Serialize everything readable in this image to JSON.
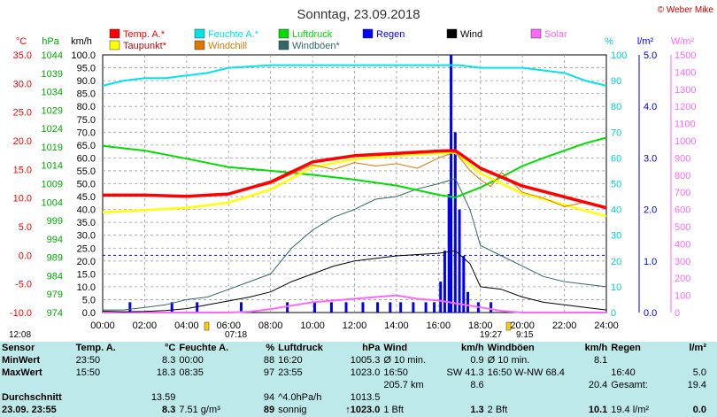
{
  "title": "Sonntag, 23.09.2018",
  "copyright": "© Weber Mike",
  "colors": {
    "temp": "#ff0000",
    "humidity": "#00e5e5",
    "pressure": "#00dd00",
    "rain": "#0000ff",
    "wind": "#000000",
    "solar": "#ff66ff",
    "dew": "#ffff00",
    "windchill": "#dd7700",
    "gust": "#336666",
    "grid": "#999999",
    "panel": "#bde9ea"
  },
  "axis_titles": {
    "temp": "°C",
    "pressure": "hPa",
    "wind": "km/h",
    "humidity": "%",
    "rain": "l/m²",
    "solar": "W/m²"
  },
  "legend": [
    {
      "label": "Temp. A.*",
      "color": "#ff0000"
    },
    {
      "label": "Feuchte A.*",
      "color": "#00e5e5"
    },
    {
      "label": "Luftdruck",
      "color": "#00dd00"
    },
    {
      "label": "Regen",
      "color": "#0000ff"
    },
    {
      "label": "Wind",
      "color": "#000000"
    },
    {
      "label": "Solar",
      "color": "#ff66ff"
    },
    {
      "label": "Taupunkt*",
      "color": "#ffff00"
    },
    {
      "label": "Windchill",
      "color": "#dd7700"
    },
    {
      "label": "Windböen*",
      "color": "#336666"
    }
  ],
  "sun_info": {
    "sunrise": "07:18",
    "sunset": "19:27",
    "left_time": "12:08",
    "right_time": "9:15"
  },
  "chart_data": {
    "type": "line",
    "xlabel": "",
    "ylabel": "",
    "x_ticks": [
      "00:00",
      "02:00",
      "04:00",
      "06:00",
      "08:00",
      "10:00",
      "12:00",
      "14:00",
      "16:00",
      "18:00",
      "20:00",
      "22:00",
      "24:00"
    ],
    "axes": {
      "temp_ticks": [
        -10.0,
        -5.0,
        0.0,
        5.0,
        10.0,
        15.0,
        20.0,
        25.0,
        30.0,
        35.0
      ],
      "pressure_ticks": [
        974,
        979,
        984,
        989,
        994,
        999,
        1004,
        1009,
        1014,
        1019,
        1024,
        1029,
        1034,
        1039,
        1044
      ],
      "wind_ticks": [
        0.0,
        5.0,
        10.0,
        15.0,
        20.0,
        25.0,
        30.0,
        35.0,
        40.0,
        45.0,
        50.0,
        55.0,
        60.0,
        65.0,
        70.0,
        75.0,
        80.0,
        85.0,
        90.0,
        95.0,
        100.0
      ],
      "humidity_ticks": [
        0,
        10,
        20,
        30,
        40,
        50,
        60,
        70,
        80,
        90,
        100
      ],
      "rain_ticks": [
        0.0,
        1.0,
        2.0,
        3.0,
        4.0,
        5.0
      ],
      "solar_ticks": [
        0,
        100,
        200,
        300,
        400,
        500,
        600,
        700,
        800,
        900,
        1000,
        1100,
        1200,
        1300,
        1400,
        1500
      ]
    },
    "series": [
      {
        "name": "Temp. A.*",
        "axis": "temp",
        "x": [
          0,
          2,
          4,
          6,
          8,
          10,
          12,
          14,
          16,
          16.8,
          18,
          20,
          22,
          24
        ],
        "y": [
          10.5,
          10.5,
          10.3,
          10.7,
          12.8,
          16.3,
          17.4,
          17.8,
          18.2,
          18.3,
          15.2,
          12.1,
          10.2,
          8.3
        ]
      },
      {
        "name": "Taupunkt*",
        "axis": "temp",
        "x": [
          0,
          2,
          4,
          6,
          8,
          10,
          12,
          14,
          16,
          16.8,
          18,
          20,
          22,
          24
        ],
        "y": [
          7.5,
          7.9,
          8.3,
          9.2,
          11.5,
          15.4,
          16.8,
          17.4,
          17.8,
          17.9,
          14.3,
          10.8,
          8.8,
          6.8
        ]
      },
      {
        "name": "Windchill",
        "axis": "temp",
        "x": [
          0,
          2,
          4,
          6,
          8,
          9,
          10,
          11,
          12,
          13,
          14,
          15,
          16,
          16.8,
          17.5,
          18,
          18.5,
          19,
          20,
          21,
          22,
          23,
          24
        ],
        "y": [
          10.5,
          10.5,
          10.3,
          10.7,
          12.5,
          14.2,
          15.8,
          15.0,
          16.2,
          15.6,
          16.0,
          15.2,
          17.0,
          18.0,
          14.8,
          13.2,
          12.0,
          14.5,
          11.0,
          10.0,
          8.5,
          9.3,
          8.3
        ]
      },
      {
        "name": "Feuchte A.*",
        "axis": "humidity",
        "x": [
          0,
          1,
          2,
          3,
          4,
          5,
          6,
          8,
          10,
          12,
          14,
          16,
          17,
          18,
          19,
          20,
          21,
          22,
          23,
          24
        ],
        "y": [
          88,
          90,
          91,
          91,
          92,
          93,
          95,
          96,
          96,
          96,
          96,
          96,
          96,
          95,
          95,
          95,
          94,
          93,
          90,
          88
        ]
      },
      {
        "name": "Luftdruck",
        "axis": "pressure",
        "x": [
          0,
          2,
          4,
          6,
          8,
          10,
          12,
          14,
          16,
          16.8,
          18,
          19,
          20,
          21,
          22,
          23,
          24
        ],
        "y": [
          1019.3,
          1018.0,
          1015.8,
          1013.5,
          1012.5,
          1011.4,
          1010.1,
          1008.5,
          1006.0,
          1005.3,
          1008.0,
          1010.8,
          1013.8,
          1016.0,
          1018.0,
          1020.0,
          1021.5
        ]
      },
      {
        "name": "Wind",
        "axis": "wind",
        "x": [
          0,
          1,
          2,
          3,
          4,
          5,
          6,
          7,
          8,
          9,
          10,
          11,
          12,
          13,
          14,
          15,
          16,
          16.8,
          17.5,
          18,
          19,
          20,
          21,
          22,
          23,
          24
        ],
        "y": [
          0.5,
          0.3,
          0.4,
          0.8,
          1.5,
          3.0,
          4.5,
          6.0,
          8.0,
          12.0,
          15.0,
          18.0,
          20.0,
          21.0,
          22.0,
          22.5,
          23.0,
          24.0,
          19.0,
          10.0,
          9.0,
          6.0,
          4.0,
          3.0,
          2.0,
          1.0
        ]
      },
      {
        "name": "Windböen*",
        "axis": "wind",
        "x": [
          0,
          1,
          2,
          3,
          4,
          5,
          6,
          7,
          8,
          9,
          10,
          11,
          12,
          13,
          14,
          15,
          16,
          16.8,
          17.5,
          18,
          19,
          20,
          21,
          22,
          23,
          24
        ],
        "y": [
          1.0,
          1.0,
          2.0,
          3.0,
          5.0,
          6.0,
          9.0,
          12.0,
          15.0,
          25.0,
          32.0,
          37.0,
          40.0,
          44.0,
          45.0,
          48.0,
          50.0,
          52.0,
          40.0,
          26.0,
          22.0,
          18.0,
          14.0,
          12.0,
          11.0,
          10.0
        ]
      },
      {
        "name": "Solar",
        "axis": "solar",
        "x": [
          0,
          6,
          7,
          8,
          9,
          10,
          11,
          12,
          13,
          14,
          15,
          16,
          17,
          18,
          19,
          20,
          24
        ],
        "y": [
          0,
          0,
          5,
          20,
          40,
          60,
          70,
          80,
          90,
          100,
          80,
          70,
          50,
          30,
          10,
          0,
          0
        ]
      },
      {
        "name": "Regen",
        "axis": "rain",
        "type": "bar",
        "x": [
          1.3,
          3.3,
          4.5,
          6.6,
          8.8,
          10.1,
          10.9,
          11.6,
          12.4,
          13.1,
          13.7,
          14.2,
          14.8,
          15.4,
          15.8,
          16.1,
          16.3,
          16.5,
          16.6,
          16.8,
          17.0,
          17.2,
          17.4,
          17.9,
          18.5
        ],
        "y": [
          0.2,
          0.2,
          0.2,
          0.2,
          0.2,
          0.2,
          0.2,
          0.2,
          0.2,
          0.2,
          0.2,
          0.2,
          0.2,
          0.2,
          0.2,
          0.6,
          1.2,
          2.3,
          5.0,
          3.5,
          2.0,
          1.1,
          0.4,
          0.2,
          0.2
        ]
      }
    ],
    "reference_lines": [
      {
        "axis": "temp",
        "y": 0.0,
        "style": "dashed",
        "color": "#0000ff"
      }
    ]
  },
  "stats": {
    "headers": [
      "Sensor",
      "Temp. A.",
      "°C",
      "Feuchte A.",
      "%",
      "Luftdruck",
      "hPa",
      "Wind",
      "km/h",
      "Windböen",
      "km/h",
      "Regen",
      "l/m²"
    ],
    "rows": [
      {
        "label": "MinWert",
        "cells": [
          "23:50",
          "8.3",
          "00:00",
          "88",
          "16:20",
          "1005.3",
          "Ø 10 min.",
          "0.9",
          "Ø 10 min.",
          "8.1",
          "",
          ""
        ]
      },
      {
        "label": "MaxWert",
        "cells": [
          "15:50",
          "18.3",
          "08:35",
          "97",
          "23:55",
          "1023.0",
          "16:50",
          "SW 41.3",
          "16:50  W-NW 68.4",
          "",
          "16:40",
          "5.0"
        ]
      },
      {
        "label": "",
        "cells": [
          "",
          "",
          "",
          "",
          "",
          "",
          "205.7 km",
          "8.6",
          "",
          "20.4",
          "Gesamt:",
          "19.4"
        ]
      },
      {
        "label": "Durchschnitt",
        "cells": [
          "",
          "13.59",
          "",
          "94",
          "^4.0hPa/h",
          "1013.5",
          "",
          "",
          "",
          "",
          "",
          ""
        ]
      },
      {
        "label": "23.09. 23:55",
        "cells": [
          "",
          "8.3",
          "7.51 g/m³",
          "89",
          "sonnig",
          "↑1023.0",
          "1 Bft",
          "1.3",
          "2 Bft",
          "10.1",
          "19.4 l/m²",
          "0.0"
        ]
      }
    ]
  }
}
